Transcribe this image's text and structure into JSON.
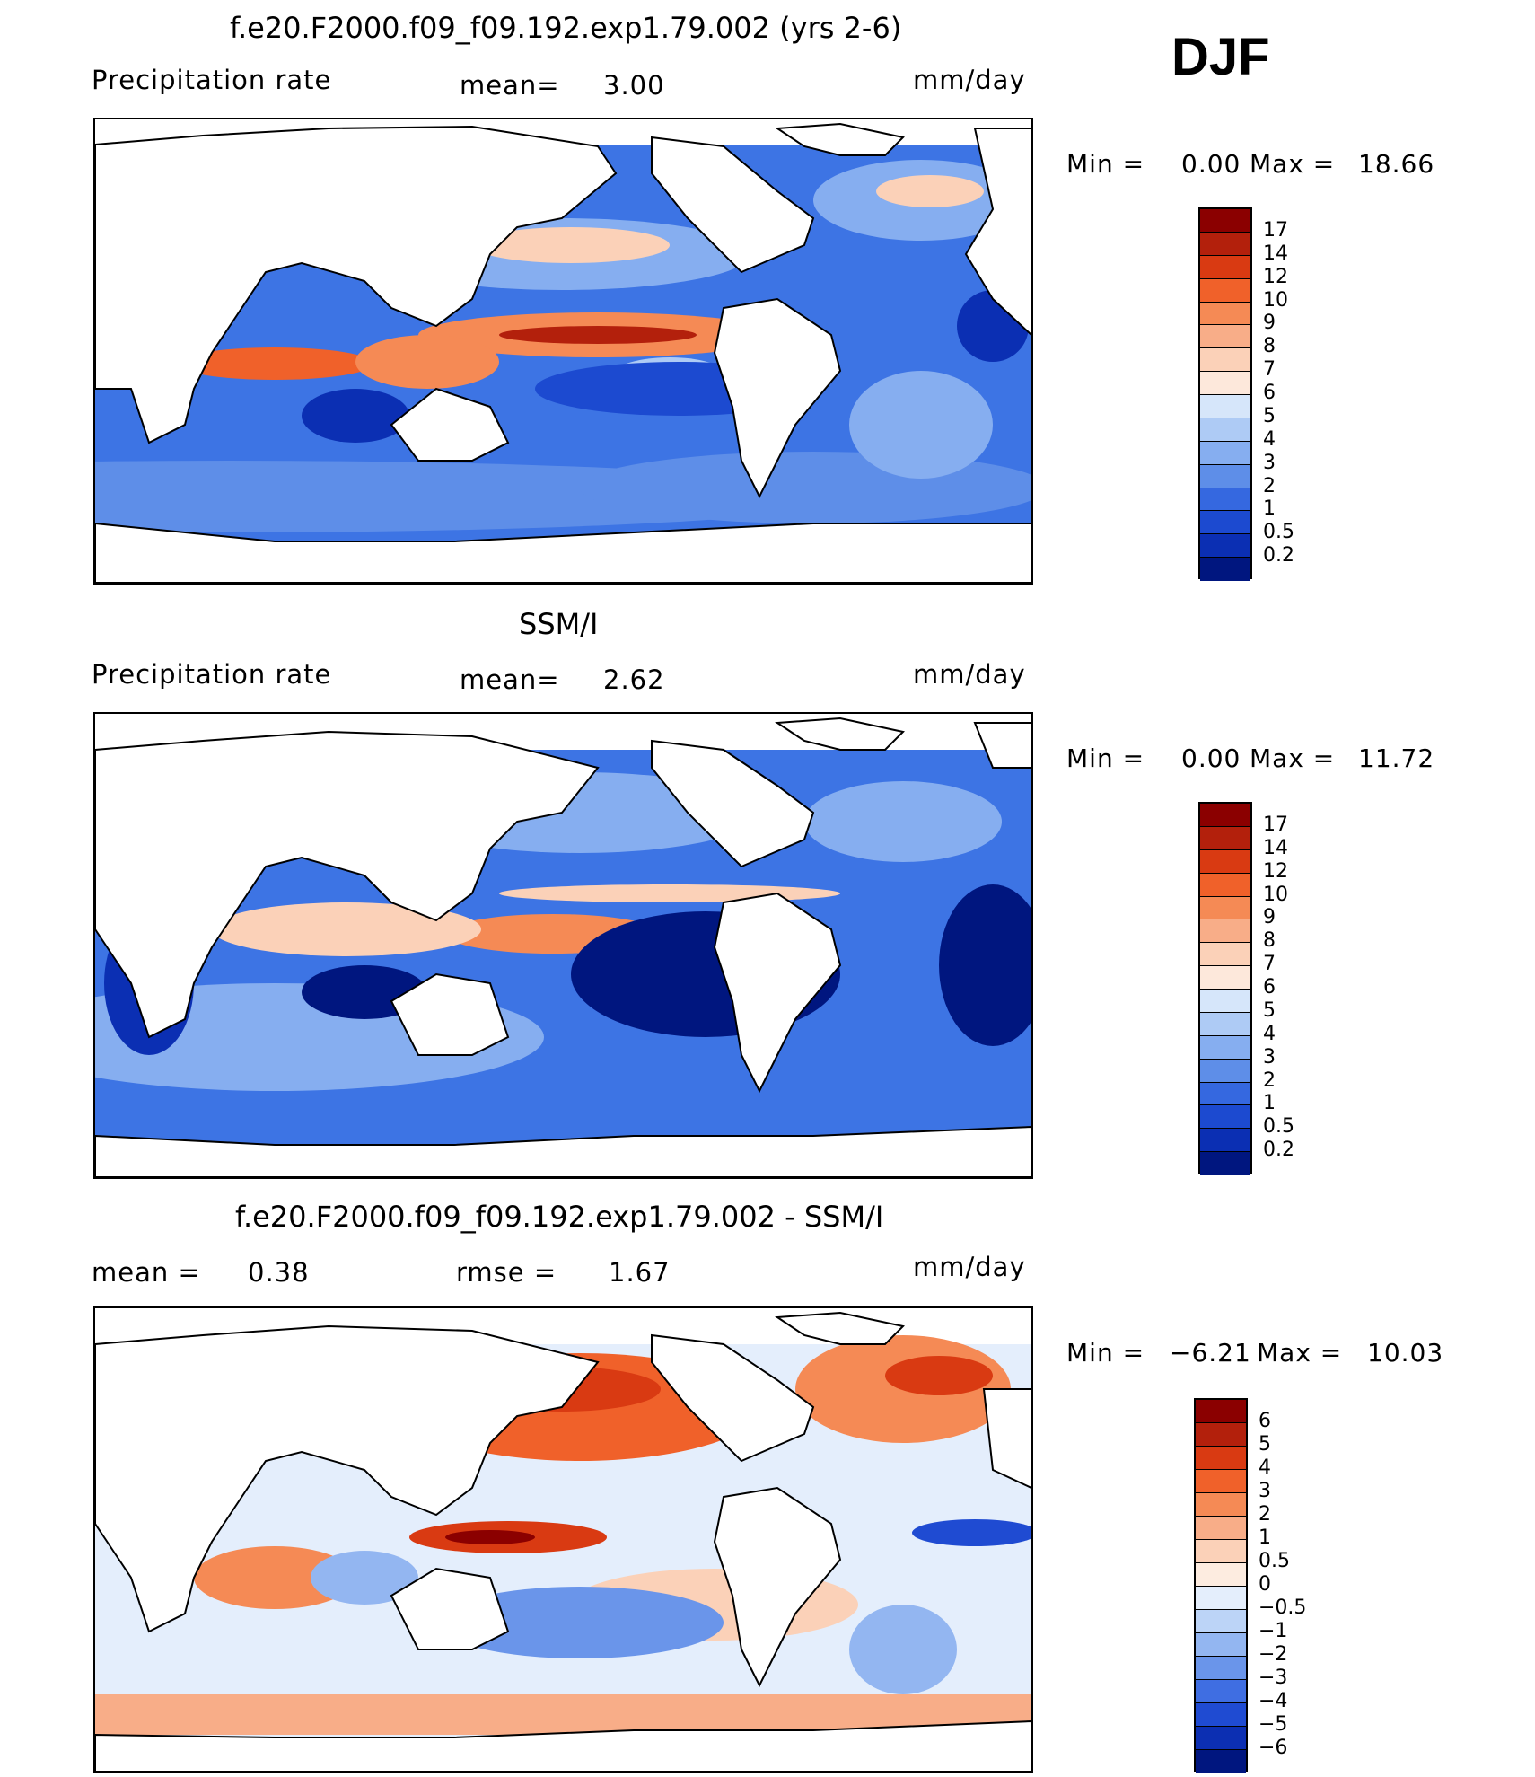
{
  "season": "DJF",
  "panels": [
    {
      "title": "f.e20.F2000.f09_f09.192.exp1.79.002 (yrs 2-6)",
      "left_label": "Precipitation  rate",
      "mid_label": "mean=",
      "mid_value": "3.00",
      "units": "mm/day",
      "min_label": "Min  =",
      "min_value": "0.00",
      "max_label": "Max  =",
      "max_value": "18.66",
      "colorbar": [
        "17",
        "14",
        "12",
        "10",
        "9",
        "8",
        "7",
        "6",
        "5",
        "4",
        "3",
        "2",
        "1",
        "0.5",
        "0.2"
      ]
    },
    {
      "title": "SSM/I",
      "left_label": "Precipitation  rate",
      "mid_label": "mean=",
      "mid_value": "2.62",
      "units": "mm/day",
      "min_label": "Min  =",
      "min_value": "0.00",
      "max_label": "Max  =",
      "max_value": "11.72",
      "colorbar": [
        "17",
        "14",
        "12",
        "10",
        "9",
        "8",
        "7",
        "6",
        "5",
        "4",
        "3",
        "2",
        "1",
        "0.5",
        "0.2"
      ]
    },
    {
      "title": "f.e20.F2000.f09_f09.192.exp1.79.002 - SSM/I",
      "left_label": "mean  =",
      "left_value": "0.38",
      "mid_label": "rmse  =",
      "mid_value": "1.67",
      "units": "mm/day",
      "min_label": "Min  =",
      "min_value": "−6.21",
      "max_label": "Max  =",
      "max_value": "10.03",
      "colorbar": [
        "6",
        "5",
        "4",
        "3",
        "2",
        "1",
        "0.5",
        "0",
        "−0.5",
        "−1",
        "−2",
        "−3",
        "−4",
        "−5",
        "−6"
      ]
    }
  ],
  "colors": {
    "abs_scale": [
      "#8b0000",
      "#b3200c",
      "#d93a12",
      "#f0612a",
      "#f58a55",
      "#f8ad88",
      "#fbd1b8",
      "#fde8db",
      "#d6e6fa",
      "#aecbf5",
      "#86aef0",
      "#5e8ee8",
      "#3568e0",
      "#1c4ad0",
      "#0b2fb3",
      "#00167f"
    ],
    "diff_scale": [
      "#8b0000",
      "#b3200c",
      "#d93a12",
      "#f0612a",
      "#f58a55",
      "#f8ad88",
      "#fbd1b8",
      "#fdece0",
      "#e4eefc",
      "#bcd4f7",
      "#93b6f1",
      "#6a95ea",
      "#3f6ee2",
      "#1f4bd2",
      "#0c2fb2",
      "#00167f"
    ]
  }
}
